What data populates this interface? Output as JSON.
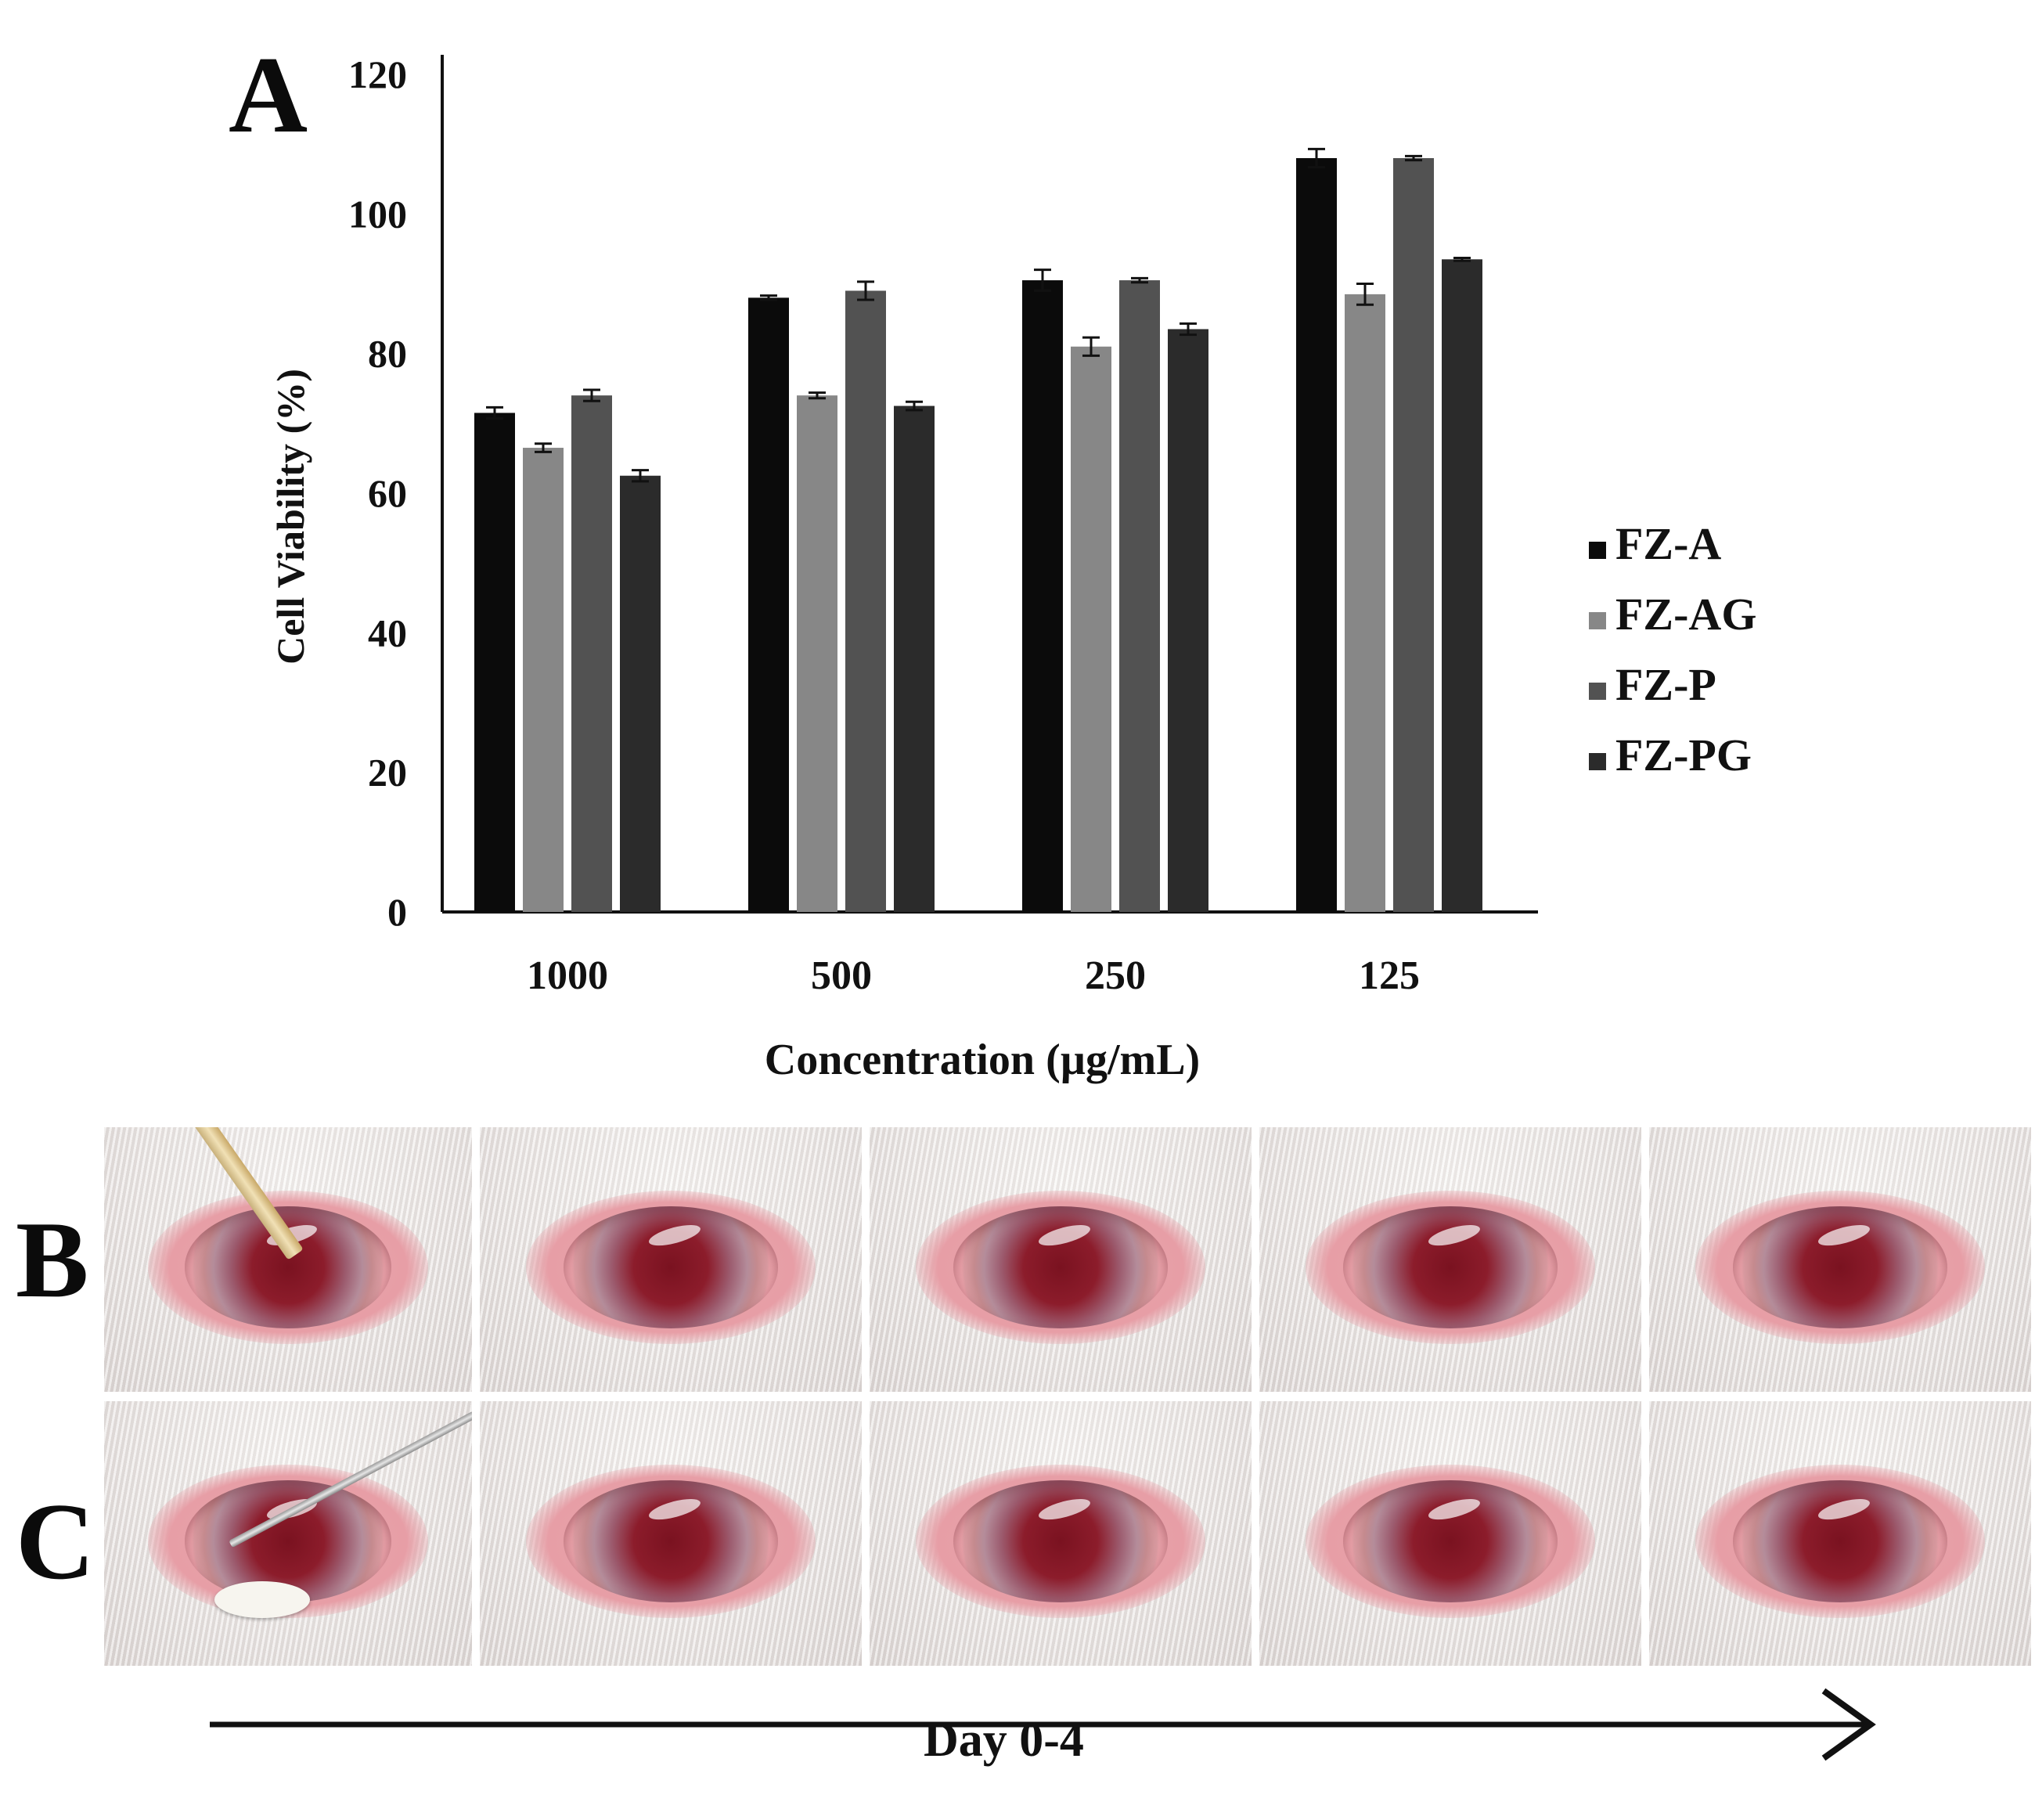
{
  "panel_labels": {
    "a": "A",
    "b": "B",
    "c": "C"
  },
  "chart_data": {
    "type": "bar",
    "title": "",
    "xlabel": "Concentration (µg/mL)",
    "ylabel": "Cell Viability (%)",
    "ylim": [
      0,
      120
    ],
    "yticks": [
      0,
      20,
      40,
      60,
      80,
      100,
      120
    ],
    "grid": false,
    "legend_position": "right",
    "categories": [
      "1000",
      "500",
      "250",
      "125"
    ],
    "series": [
      {
        "name": "FZ-A",
        "color": "#0b0b0b",
        "values": [
          71.5,
          88.0,
          90.5,
          108.0
        ],
        "errors": [
          0.8,
          0.3,
          1.5,
          1.3
        ]
      },
      {
        "name": "FZ-AG",
        "color": "#878787",
        "values": [
          66.5,
          74.0,
          81.0,
          88.5
        ],
        "errors": [
          0.6,
          0.4,
          1.3,
          1.5
        ]
      },
      {
        "name": "FZ-P",
        "color": "#525252",
        "values": [
          74.0,
          89.0,
          90.5,
          108.0
        ],
        "errors": [
          0.8,
          1.3,
          0.3,
          0.3
        ]
      },
      {
        "name": "FZ-PG",
        "color": "#2b2b2b",
        "values": [
          62.5,
          72.5,
          83.5,
          93.5
        ],
        "errors": [
          0.8,
          0.6,
          0.8,
          0.2
        ]
      }
    ]
  },
  "photo_rows": {
    "b": {
      "tool": "pipette",
      "widths": [
        470,
        488,
        488,
        488,
        488
      ]
    },
    "c": {
      "tool": "forceps",
      "widths": [
        470,
        488,
        488,
        488,
        488
      ]
    }
  },
  "timeline": {
    "label": "Day 0-4"
  }
}
